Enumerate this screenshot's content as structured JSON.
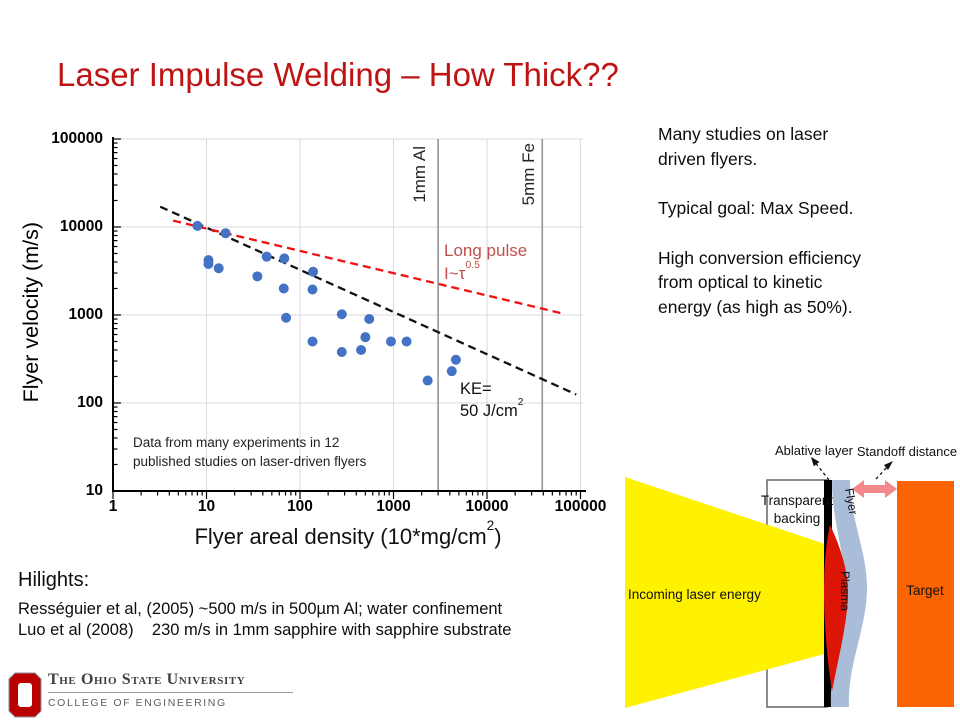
{
  "slide": {
    "title": "Laser Impulse Welding – How Thick??",
    "title_color": "#be1414"
  },
  "chart_data": {
    "type": "scatter",
    "log_x": true,
    "log_y": true,
    "xlim": [
      1,
      100000
    ],
    "ylim": [
      10,
      100000
    ],
    "grid": true,
    "legend": "none",
    "xlabel_pre": "Flyer areal density (10*mg/cm",
    "xlabel_sup": "2",
    "xlabel_post": ")",
    "ylabel": "Flyer velocity (m/s)",
    "x_ticks": [
      "1",
      "10",
      "100",
      "1000",
      "10000",
      "100000"
    ],
    "y_ticks": [
      "100000",
      "10000",
      "1000",
      "100",
      "10"
    ],
    "x_gridlines": [
      10,
      100,
      1000,
      10000,
      100000
    ],
    "y_gridlines": [
      100,
      1000,
      10000,
      100000
    ],
    "point_color": "#4472c4",
    "points": [
      [
        8,
        10300
      ],
      [
        16,
        8500
      ],
      [
        10.5,
        4200
      ],
      [
        10.5,
        3800
      ],
      [
        13.5,
        3400
      ],
      [
        44,
        4600
      ],
      [
        68,
        4400
      ],
      [
        35,
        2750
      ],
      [
        67,
        2000
      ],
      [
        138,
        3100
      ],
      [
        136,
        1950
      ],
      [
        71,
        930
      ],
      [
        280,
        1020
      ],
      [
        550,
        900
      ],
      [
        136,
        500
      ],
      [
        500,
        560
      ],
      [
        280,
        380
      ],
      [
        450,
        400
      ],
      [
        940,
        500
      ],
      [
        1380,
        500
      ],
      [
        2320,
        180
      ],
      [
        4200,
        230
      ],
      [
        4650,
        310
      ]
    ],
    "trend_lines": [
      {
        "name": "KE = 50 J/cm2",
        "color": "#111111",
        "from": [
          3.2,
          17000
        ],
        "to": [
          90000,
          125
        ]
      },
      {
        "name": "Long pulse I~τ^0.5",
        "color": "#ee1111",
        "from": [
          4.4,
          11800
        ],
        "to": [
          62000,
          1050
        ]
      }
    ],
    "marker_lines": [
      {
        "label": "1mm Al",
        "x": 3000
      },
      {
        "label": "5mm Fe",
        "x": 39000
      }
    ],
    "annotations": {
      "long_pulse_1": "Long pulse",
      "long_pulse_2_pre": "I~τ",
      "long_pulse_2_sup": "0.5",
      "ke_1": "KE=",
      "ke_2_pre": "50 J/cm",
      "ke_2_sup": "2",
      "note_line1": "Data from many experiments in 12",
      "note_line2": "published studies on laser-driven flyers"
    }
  },
  "right_panel": {
    "para1": "Many studies on laser\ndriven flyers.",
    "para2": "Typical goal: Max Speed.",
    "para3": "High conversion efficiency\nfrom optical to kinetic\nenergy (as high as 50%)."
  },
  "hilights": {
    "heading": "Hilights:",
    "line1": "Rességuier et al, (2005) ~500 m/s in 500µm Al; water confinement",
    "line2": "Luo et al (2008)    230 m/s in 1mm sapphire with sapphire substrate"
  },
  "diagram": {
    "labels": {
      "incoming": "Incoming laser energy",
      "backing_line1": "Transparent",
      "backing_line2": "backing",
      "flyer": "Flyer",
      "plasma": "Plasma",
      "target": "Target",
      "ablative": "Ablative layer",
      "standoff": "Standoff distance"
    },
    "colors": {
      "beam": "#fff200",
      "flyer": "#aabdd8",
      "plasma": "#dd1507",
      "target": "#fb6400",
      "arrow": "#f4898b"
    }
  },
  "footer": {
    "university": "The Ohio State University",
    "college": "COLLEGE OF ENGINEERING",
    "logo_color": "#bb0000"
  }
}
